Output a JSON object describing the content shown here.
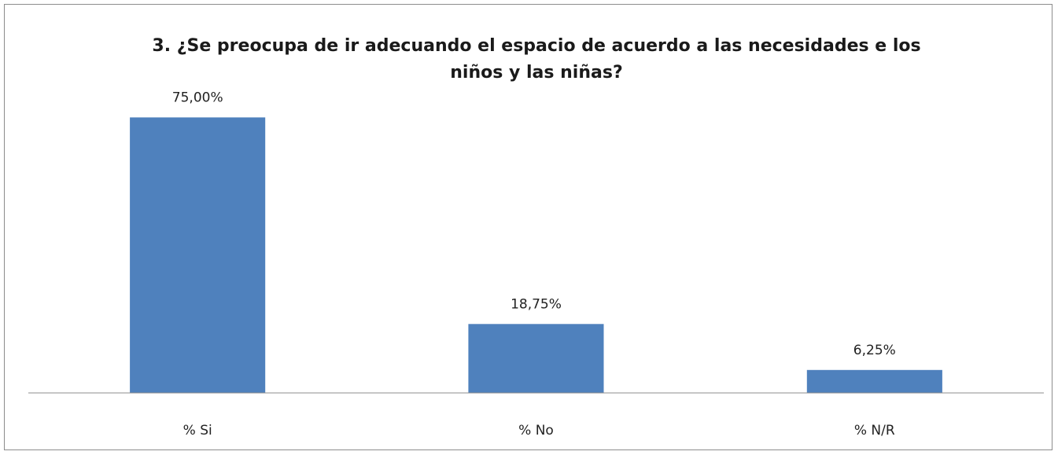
{
  "chart_data": {
    "type": "bar",
    "title": "3.  ¿Se preocupa de ir adecuando el espacio de acuerdo a las necesidades e los niños y las niñas?",
    "title_lines": [
      "3.  ¿Se preocupa de ir adecuando el espacio de acuerdo a las necesidades e los",
      "niños y las niñas?"
    ],
    "categories": [
      "% Si",
      "% No",
      "% N/R"
    ],
    "values": [
      75.0,
      18.75,
      6.25
    ],
    "data_labels": [
      "75,00%",
      "18,75%",
      "6,25%"
    ],
    "xlabel": "",
    "ylabel": "",
    "ylim": [
      0,
      80
    ],
    "grid": false,
    "legend": "none",
    "bar_color": "#4f81bd",
    "axis_color": "#8c8c8c"
  }
}
